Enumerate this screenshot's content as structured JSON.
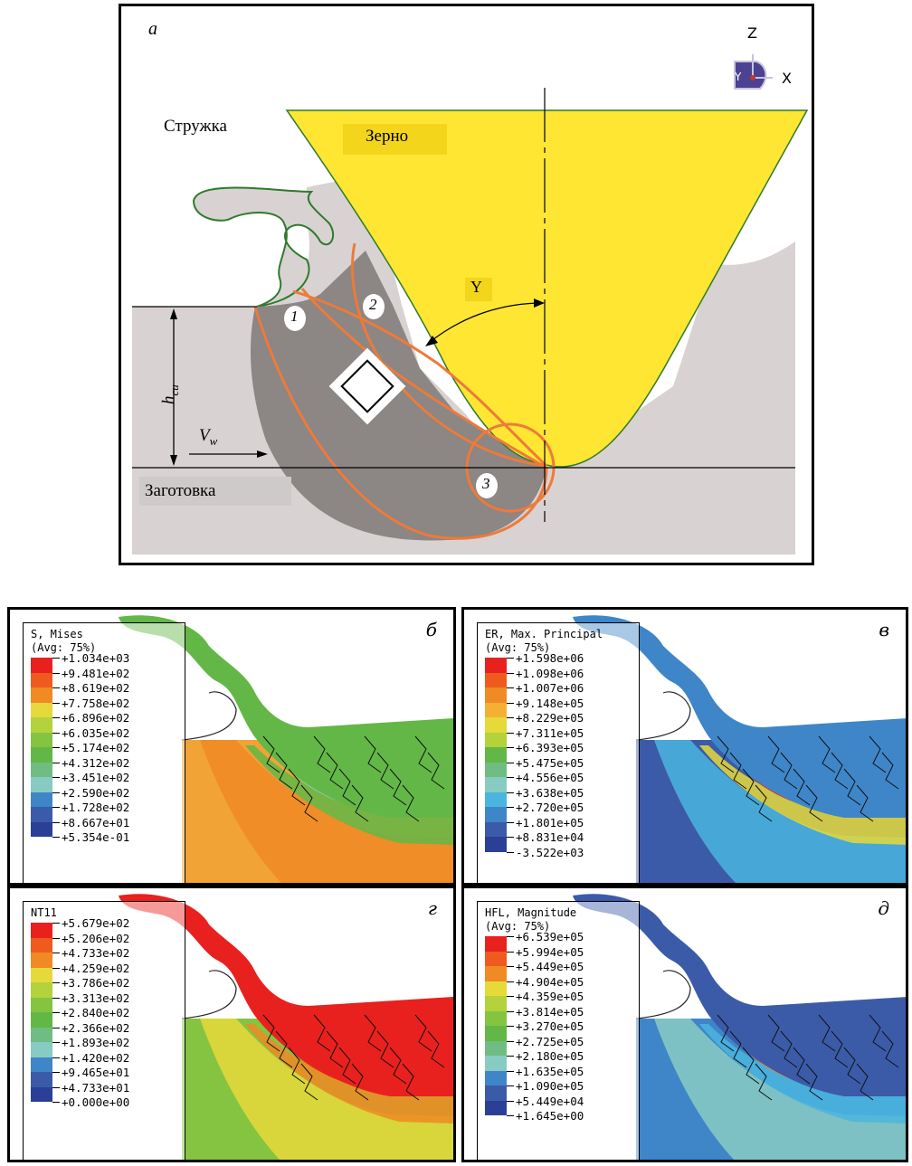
{
  "top": {
    "letter": "a",
    "chip_label": "Стружка",
    "grain_label": "Зерно",
    "workpiece_label": "Заготовка",
    "angle_label": "Y",
    "depth_symbol": "h",
    "depth_subscript": "cu",
    "velocity_symbol": "V",
    "velocity_subscript": "w",
    "zones": [
      "1",
      "2",
      "3"
    ],
    "axes": {
      "z": "Z",
      "y": "Y",
      "x": "X"
    }
  },
  "panels": [
    {
      "letter": "б",
      "title": [
        "S, Mises",
        "(Avg: 75%)"
      ],
      "values": [
        "+1.034e+03",
        "+9.481e+02",
        "+8.619e+02",
        "+7.758e+02",
        "+6.896e+02",
        "+6.035e+02",
        "+5.174e+02",
        "+4.312e+02",
        "+3.451e+02",
        "+2.590e+02",
        "+1.728e+02",
        "+8.667e+01",
        "+5.354e-01"
      ]
    },
    {
      "letter": "в",
      "title": [
        "ER, Max. Principal",
        "(Avg: 75%)"
      ],
      "values": [
        "+1.598e+06",
        "+1.098e+06",
        "+1.007e+06",
        "+9.148e+05",
        "+8.229e+05",
        "+7.311e+05",
        "+6.393e+05",
        "+5.475e+05",
        "+4.556e+05",
        "+3.638e+05",
        "+2.720e+05",
        "+1.801e+05",
        "+8.831e+04",
        "-3.522e+03"
      ]
    },
    {
      "letter": "г",
      "title": [
        "NT11"
      ],
      "values": [
        "+5.679e+02",
        "+5.206e+02",
        "+4.733e+02",
        "+4.259e+02",
        "+3.786e+02",
        "+3.313e+02",
        "+2.840e+02",
        "+2.366e+02",
        "+1.893e+02",
        "+1.420e+02",
        "+9.465e+01",
        "+4.733e+01",
        "+0.000e+00"
      ]
    },
    {
      "letter": "д",
      "title": [
        "HFL, Magnitude",
        "(Avg: 75%)"
      ],
      "values": [
        "+6.539e+05",
        "+5.994e+05",
        "+5.449e+05",
        "+4.904e+05",
        "+4.359e+05",
        "+3.814e+05",
        "+3.270e+05",
        "+2.725e+05",
        "+2.180e+05",
        "+1.635e+05",
        "+1.090e+05",
        "+5.449e+04",
        "+1.645e+00"
      ]
    }
  ],
  "colors": {
    "scale": [
      "#e8211e",
      "#ef5a1e",
      "#f08a24",
      "#f4b033",
      "#e6d93a",
      "#b3d23c",
      "#84c441",
      "#63b747",
      "#6fbd82",
      "#88cbc3",
      "#4ab5df",
      "#3f86c8",
      "#3b5ba9",
      "#2b3f96"
    ],
    "grain": "#ffe633",
    "workpiece": "#d9d2d2",
    "deform_zone": "#8c8685",
    "zone_outline": "#ee7a3a",
    "chip_fragments": "#2f7a2b"
  }
}
